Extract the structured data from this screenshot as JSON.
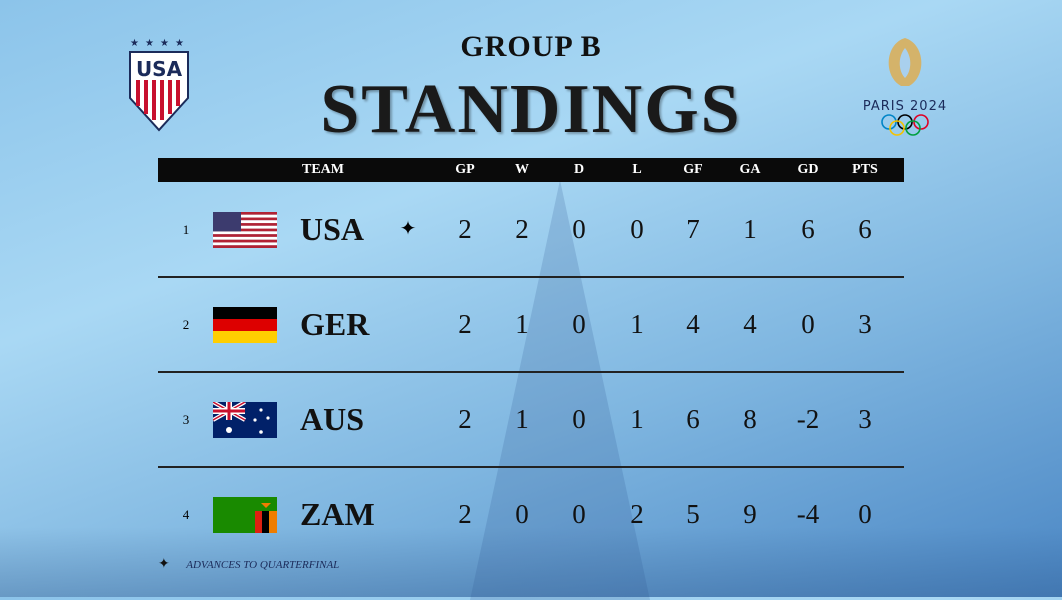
{
  "header": {
    "group": "GROUP B",
    "title": "STANDINGS",
    "usa_logo_text": "USA",
    "paris_logo_text": "PARIS 2024"
  },
  "columns": {
    "team": "TEAM",
    "gp": "GP",
    "w": "W",
    "d": "D",
    "l": "L",
    "gf": "GF",
    "ga": "GA",
    "gd": "GD",
    "pts": "PTS"
  },
  "rows": [
    {
      "rank": "1",
      "team": "USA",
      "flag": "usa-flag",
      "advances": true,
      "gp": "2",
      "w": "2",
      "d": "0",
      "l": "0",
      "gf": "7",
      "ga": "1",
      "gd": "6",
      "pts": "6"
    },
    {
      "rank": "2",
      "team": "GER",
      "flag": "germany-flag",
      "advances": false,
      "gp": "2",
      "w": "1",
      "d": "0",
      "l": "1",
      "gf": "4",
      "ga": "4",
      "gd": "0",
      "pts": "3"
    },
    {
      "rank": "3",
      "team": "AUS",
      "flag": "australia-flag",
      "advances": false,
      "gp": "2",
      "w": "1",
      "d": "0",
      "l": "1",
      "gf": "6",
      "ga": "8",
      "gd": "-2",
      "pts": "3"
    },
    {
      "rank": "4",
      "team": "ZAM",
      "flag": "zambia-flag",
      "advances": false,
      "gp": "2",
      "w": "0",
      "d": "0",
      "l": "2",
      "gf": "5",
      "ga": "9",
      "gd": "-4",
      "pts": "0"
    }
  ],
  "legend": {
    "symbol": "✦",
    "text": "ADVANCES TO QUARTERFINAL"
  }
}
